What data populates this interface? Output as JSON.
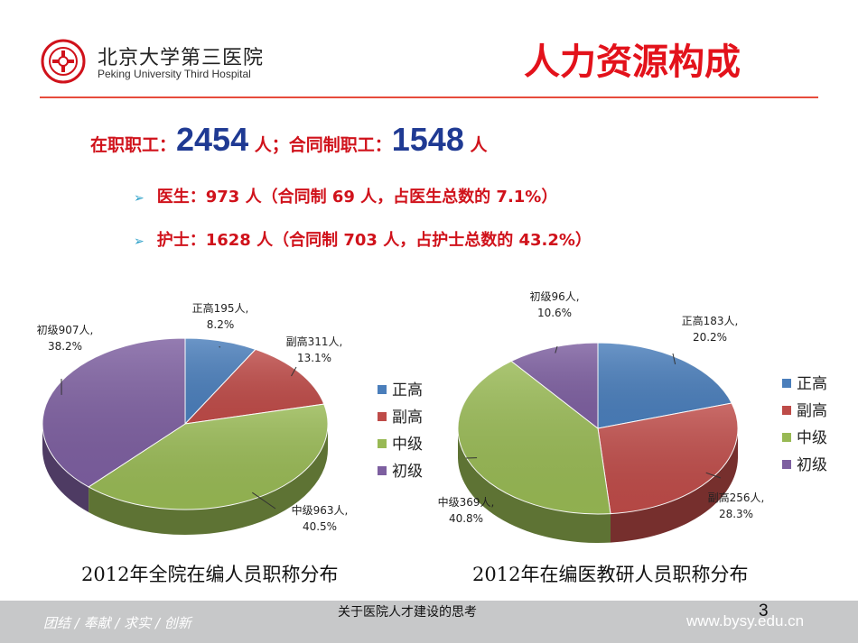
{
  "header": {
    "hospital_cn": "北京大学第三医院",
    "hospital_en": "Peking University Third Hospital",
    "title": "人力资源构成"
  },
  "summary": {
    "label1": "在职职工：",
    "value1": "2454",
    "unit1": " 人；",
    "label2": "合同制职工：",
    "value2": "1548",
    "unit2": " 人"
  },
  "bullets": [
    "医生：973 人（合同制 69 人，占医生总数的 7.1%）",
    "护士：1628 人（合同制 703 人，占护士总数的 43.2%）"
  ],
  "chart_data": [
    {
      "type": "pie",
      "title": "2012年全院在编人员职称分布",
      "categories": [
        "正高",
        "副高",
        "中级",
        "初级"
      ],
      "values": [
        195,
        311,
        963,
        907
      ],
      "percents": [
        8.2,
        13.1,
        40.5,
        38.2
      ],
      "data_labels": [
        [
          "正高195人,",
          "8.2%"
        ],
        [
          "副高311人,",
          "13.1%"
        ],
        [
          "中级963人,",
          "40.5%"
        ],
        [
          "初级907人,",
          "38.2%"
        ]
      ],
      "colors": [
        "#4a7ebb",
        "#be4b48",
        "#98b954",
        "#7d5fa0"
      ],
      "legend": [
        "正高",
        "副高",
        "中级",
        "初级"
      ],
      "legend_position": "right"
    },
    {
      "type": "pie",
      "title": "2012年在编医教研人员职称分布",
      "categories": [
        "正高",
        "副高",
        "中级",
        "初级"
      ],
      "values": [
        183,
        256,
        369,
        96
      ],
      "percents": [
        20.2,
        28.3,
        40.8,
        10.6
      ],
      "data_labels": [
        [
          "正高183人,",
          "20.2%"
        ],
        [
          "副高256人,",
          "28.3%"
        ],
        [
          "中级369人,",
          "40.8%"
        ],
        [
          "初级96人,",
          "10.6%"
        ]
      ],
      "colors": [
        "#4a7ebb",
        "#be4b48",
        "#98b954",
        "#7d5fa0"
      ],
      "legend": [
        "正高",
        "副高",
        "中级",
        "初级"
      ],
      "legend_position": "right"
    }
  ],
  "footer": {
    "motto": "团结 / 奉献 / 求实 / 创新",
    "center_text": "关于医院人才建设的思考",
    "page_number": "3",
    "url": "www.bysy.edu.cn"
  }
}
